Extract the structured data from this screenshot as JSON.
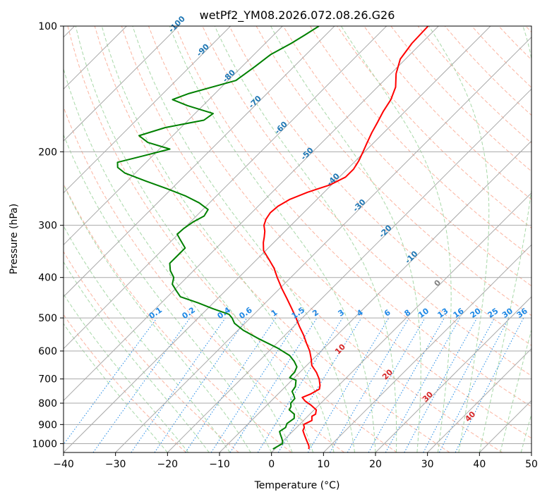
{
  "chart_data": {
    "type": "line",
    "title": "wetPf2_YM08.2026.072.08.26.G26",
    "xlabel": "Temperature (°C)",
    "ylabel": "Pressure (hPa)",
    "xlim": [
      -40,
      50
    ],
    "ylim": [
      1050,
      100
    ],
    "y_scale": "log",
    "skew": "skew-T log-p diagram",
    "x_ticks": [
      -40,
      -30,
      -20,
      -10,
      0,
      10,
      20,
      30,
      40,
      50
    ],
    "y_ticks": [
      100,
      200,
      300,
      400,
      500,
      600,
      700,
      800,
      900,
      1000
    ],
    "grid": true,
    "colors": {
      "temperature": "#ff0000",
      "dewpoint": "#008000",
      "isotherm": "#a9a9a9",
      "dry_adiabat": "#fbb4a0",
      "moist_adiabat": "#a8d8a8",
      "mixing_ratio": "#1e88e5",
      "isotherm_label": "#1f77b4",
      "moist_label": "#d62728"
    },
    "series": [
      {
        "key": "temperature",
        "color": "#ff0000",
        "points": [
          [
            100,
            -52.0
          ],
          [
            110,
            -51.8
          ],
          [
            120,
            -51.0
          ],
          [
            130,
            -49.0
          ],
          [
            140,
            -46.5
          ],
          [
            150,
            -45.0
          ],
          [
            160,
            -44.2
          ],
          [
            170,
            -43.2
          ],
          [
            180,
            -42.3
          ],
          [
            190,
            -41.3
          ],
          [
            200,
            -40.3
          ],
          [
            210,
            -39.4
          ],
          [
            220,
            -38.8
          ],
          [
            230,
            -38.8
          ],
          [
            240,
            -40.3
          ],
          [
            250,
            -43.2
          ],
          [
            260,
            -45.2
          ],
          [
            270,
            -46.2
          ],
          [
            280,
            -46.4
          ],
          [
            290,
            -46.0
          ],
          [
            300,
            -45.2
          ],
          [
            310,
            -43.9
          ],
          [
            320,
            -42.9
          ],
          [
            330,
            -42.0
          ],
          [
            345,
            -40.4
          ],
          [
            360,
            -38.0
          ],
          [
            380,
            -35.0
          ],
          [
            400,
            -32.6
          ],
          [
            425,
            -29.6
          ],
          [
            450,
            -26.6
          ],
          [
            475,
            -23.8
          ],
          [
            500,
            -21.2
          ],
          [
            525,
            -18.8
          ],
          [
            550,
            -16.4
          ],
          [
            575,
            -14.3
          ],
          [
            600,
            -12.2
          ],
          [
            625,
            -10.5
          ],
          [
            650,
            -9.0
          ],
          [
            675,
            -6.8
          ],
          [
            700,
            -5.0
          ],
          [
            725,
            -3.6
          ],
          [
            740,
            -3.0
          ],
          [
            760,
            -3.7
          ],
          [
            775,
            -4.7
          ],
          [
            790,
            -3.5
          ],
          [
            810,
            -1.4
          ],
          [
            830,
            0.4
          ],
          [
            850,
            1.1
          ],
          [
            860,
            0.8
          ],
          [
            880,
            1.6
          ],
          [
            900,
            0.8
          ],
          [
            915,
            1.5
          ],
          [
            930,
            1.8
          ],
          [
            950,
            2.8
          ],
          [
            970,
            3.8
          ],
          [
            990,
            4.8
          ],
          [
            1000,
            5.3
          ],
          [
            1010,
            5.8
          ],
          [
            1020,
            6.2
          ],
          [
            1030,
            6.5
          ]
        ]
      },
      {
        "key": "dewpoint",
        "color": "#008000",
        "points": [
          [
            100,
            -73.0
          ],
          [
            105,
            -74.0
          ],
          [
            110,
            -75.0
          ],
          [
            117,
            -76.8
          ],
          [
            125,
            -77.5
          ],
          [
            135,
            -78.5
          ],
          [
            145,
            -85.0
          ],
          [
            150,
            -87.0
          ],
          [
            155,
            -83.0
          ],
          [
            162,
            -76.5
          ],
          [
            168,
            -77.0
          ],
          [
            175,
            -83.0
          ],
          [
            183,
            -86.5
          ],
          [
            190,
            -83.5
          ],
          [
            197,
            -78.0
          ],
          [
            205,
            -82.0
          ],
          [
            212,
            -85.5
          ],
          [
            218,
            -84.5
          ],
          [
            225,
            -82.0
          ],
          [
            235,
            -76.5
          ],
          [
            245,
            -71.0
          ],
          [
            255,
            -66.0
          ],
          [
            265,
            -62.0
          ],
          [
            275,
            -59.0
          ],
          [
            285,
            -58.5
          ],
          [
            295,
            -59.5
          ],
          [
            305,
            -60.0
          ],
          [
            315,
            -60.2
          ],
          [
            325,
            -58.5
          ],
          [
            340,
            -56.0
          ],
          [
            355,
            -56.0
          ],
          [
            370,
            -56.0
          ],
          [
            385,
            -54.5
          ],
          [
            400,
            -52.5
          ],
          [
            415,
            -51.5
          ],
          [
            430,
            -49.5
          ],
          [
            445,
            -47.5
          ],
          [
            460,
            -43.0
          ],
          [
            475,
            -39.0
          ],
          [
            490,
            -34.8
          ],
          [
            500,
            -33.5
          ],
          [
            515,
            -32.0
          ],
          [
            535,
            -29.0
          ],
          [
            560,
            -24.5
          ],
          [
            590,
            -19.0
          ],
          [
            615,
            -15.2
          ],
          [
            635,
            -13.2
          ],
          [
            655,
            -11.6
          ],
          [
            675,
            -11.0
          ],
          [
            685,
            -11.0
          ],
          [
            695,
            -10.9
          ],
          [
            705,
            -9.2
          ],
          [
            730,
            -8.1
          ],
          [
            750,
            -7.8
          ],
          [
            765,
            -6.8
          ],
          [
            780,
            -5.9
          ],
          [
            800,
            -5.8
          ],
          [
            815,
            -5.1
          ],
          [
            830,
            -4.8
          ],
          [
            850,
            -3.0
          ],
          [
            870,
            -2.2
          ],
          [
            895,
            -2.6
          ],
          [
            915,
            -2.1
          ],
          [
            935,
            -2.5
          ],
          [
            950,
            -1.8
          ],
          [
            970,
            -0.8
          ],
          [
            990,
            0.1
          ],
          [
            1000,
            0.4
          ],
          [
            1015,
            0.0
          ],
          [
            1030,
            -0.4
          ]
        ]
      }
    ],
    "isotherm_labels": [
      "-100",
      "-90",
      "-80",
      "-70",
      "-60",
      "-50",
      "-40",
      "-30",
      "-20",
      "-10",
      "0"
    ],
    "mixing_ratio_labels": [
      "0.1",
      "0.2",
      "0.4",
      "0.6",
      "1",
      "1.5",
      "2",
      "3",
      "4",
      "6",
      "8",
      "10",
      "13",
      "16",
      "20",
      "25",
      "30",
      "36"
    ],
    "moist_adiabat_labels": [
      "10",
      "20",
      "30",
      "40"
    ]
  }
}
